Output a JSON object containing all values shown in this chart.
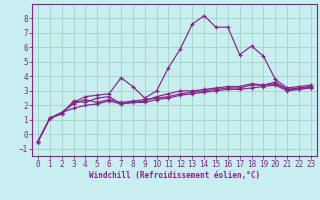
{
  "title": "",
  "xlabel": "Windchill (Refroidissement éolien,°C)",
  "ylabel": "",
  "background_color": "#c8eef0",
  "grid_color": "#99ccbb",
  "line_color": "#882288",
  "spine_color": "#882288",
  "xlim": [
    -0.5,
    23.5
  ],
  "ylim": [
    -1.5,
    9.0
  ],
  "yticks": [
    -1,
    0,
    1,
    2,
    3,
    4,
    5,
    6,
    7,
    8
  ],
  "xticks": [
    0,
    1,
    2,
    3,
    4,
    5,
    6,
    7,
    8,
    9,
    10,
    11,
    12,
    13,
    14,
    15,
    16,
    17,
    18,
    19,
    20,
    21,
    22,
    23
  ],
  "line1_x": [
    0,
    1,
    2,
    3,
    4,
    5,
    6,
    7,
    8,
    9,
    10,
    11,
    12,
    13,
    14,
    15,
    16,
    17,
    18,
    19,
    20,
    21,
    22,
    23
  ],
  "line1_y": [
    -0.5,
    1.1,
    1.5,
    2.2,
    2.6,
    2.7,
    2.8,
    3.9,
    3.3,
    2.5,
    3.0,
    4.6,
    5.9,
    7.6,
    8.2,
    7.4,
    7.4,
    5.5,
    6.1,
    5.4,
    3.8,
    3.2,
    3.3,
    3.4
  ],
  "line2_x": [
    0,
    1,
    2,
    3,
    4,
    5,
    6,
    7,
    8,
    9,
    10,
    11,
    12,
    13,
    14,
    15,
    16,
    17,
    18,
    19,
    20,
    21,
    22,
    23
  ],
  "line2_y": [
    -0.5,
    1.1,
    1.4,
    2.3,
    2.2,
    2.5,
    2.6,
    2.1,
    2.2,
    2.3,
    2.6,
    2.8,
    3.0,
    3.0,
    3.1,
    3.2,
    3.3,
    3.3,
    3.5,
    3.4,
    3.6,
    3.1,
    3.2,
    3.3
  ],
  "line3_x": [
    0,
    1,
    2,
    3,
    4,
    5,
    6,
    7,
    8,
    9,
    10,
    11,
    12,
    13,
    14,
    15,
    16,
    17,
    18,
    19,
    20,
    21,
    22,
    23
  ],
  "line3_y": [
    -0.5,
    1.1,
    1.5,
    2.1,
    2.4,
    2.2,
    2.4,
    2.2,
    2.3,
    2.4,
    2.5,
    2.6,
    2.8,
    2.9,
    3.0,
    3.1,
    3.2,
    3.2,
    3.4,
    3.4,
    3.5,
    3.1,
    3.1,
    3.3
  ],
  "line4_x": [
    0,
    1,
    2,
    3,
    4,
    5,
    6,
    7,
    8,
    9,
    10,
    11,
    12,
    13,
    14,
    15,
    16,
    17,
    18,
    19,
    20,
    21,
    22,
    23
  ],
  "line4_y": [
    -0.5,
    1.1,
    1.5,
    1.8,
    2.0,
    2.1,
    2.3,
    2.1,
    2.2,
    2.2,
    2.4,
    2.5,
    2.7,
    2.8,
    2.9,
    3.0,
    3.1,
    3.1,
    3.2,
    3.3,
    3.4,
    3.0,
    3.1,
    3.2
  ],
  "tick_fontsize": 5.5,
  "xlabel_fontsize": 5.5,
  "marker_size": 3.5,
  "linewidth": 0.85
}
